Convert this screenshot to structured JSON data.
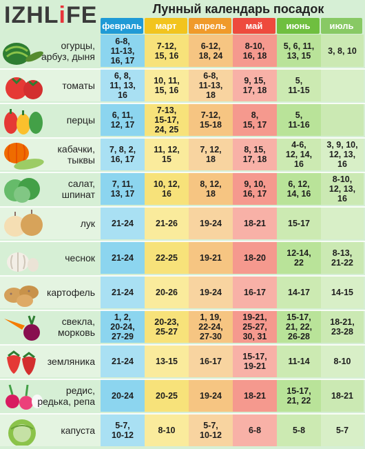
{
  "logo": {
    "text_before": "IZHL",
    "text_heart": "i",
    "text_after": "FE"
  },
  "title": "Лунный календарь посадок",
  "months": [
    {
      "label": "февраль",
      "color": "#1f9ad6"
    },
    {
      "label": "март",
      "color": "#f2c41e"
    },
    {
      "label": "апрель",
      "color": "#f09a2a"
    },
    {
      "label": "май",
      "color": "#ee4a3d"
    },
    {
      "label": "июнь",
      "color": "#6fbf3f"
    },
    {
      "label": "июль",
      "color": "#88c964"
    }
  ],
  "rows": [
    {
      "name": "огурцы,\nарбуз, дыня",
      "icon": "cucumber-watermelon-icon",
      "values": [
        "6-8,\n11-13,\n16, 17",
        "7-12,\n15, 16",
        "6-12,\n18, 24",
        "8-10,\n16, 18",
        "5, 6, 11,\n13, 15",
        "3, 8, 10"
      ]
    },
    {
      "name": "томаты",
      "icon": "tomato-icon",
      "values": [
        "6, 8,\n11, 13,\n16",
        "10, 11,\n15, 16",
        "6-8,\n11-13,\n18",
        "9, 15,\n17, 18",
        "5,\n11-15",
        ""
      ]
    },
    {
      "name": "перцы",
      "icon": "pepper-icon",
      "values": [
        "6, 11,\n12, 17",
        "7-13,\n15-17,\n24, 25",
        "7-12,\n15-18",
        "8,\n15, 17",
        "5,\n11-16",
        ""
      ]
    },
    {
      "name": "кабачки,\nтыквы",
      "icon": "pumpkin-zucchini-icon",
      "values": [
        "7, 8, 2,\n16, 17",
        "11, 12,\n15",
        "7, 12,\n18",
        "8, 15,\n17, 18",
        "4-6,\n12, 14,\n16",
        "3, 9, 10,\n12, 13,\n16"
      ]
    },
    {
      "name": "салат,\nшпинат",
      "icon": "lettuce-icon",
      "values": [
        "7, 11,\n13, 17",
        "10, 12,\n16",
        "8, 12,\n18",
        "9, 10,\n16, 17",
        "6, 12,\n14, 16",
        "8-10,\n12, 13,\n16"
      ]
    },
    {
      "name": "лук",
      "icon": "onion-icon",
      "values": [
        "21-24",
        "21-26",
        "19-24",
        "18-21",
        "15-17",
        ""
      ]
    },
    {
      "name": "чеснок",
      "icon": "garlic-icon",
      "values": [
        "21-24",
        "22-25",
        "19-21",
        "18-20",
        "12-14,\n22",
        "8-13,\n21-22"
      ]
    },
    {
      "name": "картофель",
      "icon": "potato-icon",
      "values": [
        "21-24",
        "20-26",
        "19-24",
        "16-17",
        "14-17",
        "14-15"
      ]
    },
    {
      "name": "свекла,\nморковь",
      "icon": "beet-carrot-icon",
      "values": [
        "1, 2,\n20-24,\n27-29",
        "20-23,\n25-27",
        "1, 19,\n22-24,\n27-30",
        "19-21,\n25-27,\n30, 31",
        "15-17,\n21, 22,\n26-28",
        "18-21,\n23-28"
      ]
    },
    {
      "name": "земляника",
      "icon": "strawberry-icon",
      "values": [
        "21-24",
        "13-15",
        "16-17",
        "15-17,\n19-21",
        "11-14",
        "8-10"
      ]
    },
    {
      "name": "редис,\nредька, репа",
      "icon": "radish-icon",
      "values": [
        "20-24",
        "20-25",
        "19-24",
        "18-21",
        "15-17,\n21, 22",
        "18-21"
      ]
    },
    {
      "name": "капуста",
      "icon": "cabbage-icon",
      "values": [
        "5-7,\n10-12",
        "8-10",
        "5-7,\n10-12",
        "6-8",
        "5-8",
        "5-7"
      ]
    }
  ]
}
